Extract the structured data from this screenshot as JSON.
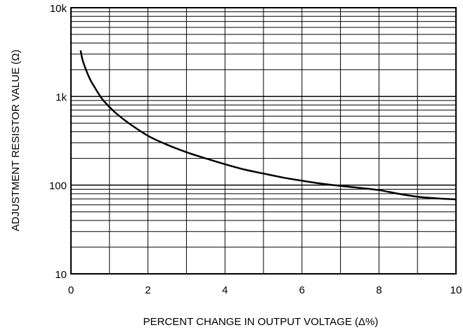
{
  "chart_data": {
    "type": "line",
    "title": "",
    "xlabel": "PERCENT CHANGE IN OUTPUT VOLTAGE (Δ%)",
    "ylabel": "ADJUSTMENT RESISTOR VALUE (Ω)",
    "x_scale": "linear",
    "y_scale": "log",
    "xlim": [
      0,
      10
    ],
    "ylim": [
      10,
      10000
    ],
    "grid": true,
    "x_ticks": [
      0,
      2,
      4,
      6,
      8,
      10
    ],
    "x_tick_labels": [
      "0",
      "2",
      "4",
      "6",
      "8",
      "10"
    ],
    "y_ticks": [
      10,
      100,
      1000,
      10000
    ],
    "y_tick_labels": [
      "10",
      "100",
      "1k",
      "10k"
    ],
    "series": [
      {
        "x": [
          0.25,
          0.3,
          0.4,
          0.5,
          0.6,
          0.8,
          1.0,
          1.2,
          1.5,
          2.0,
          2.5,
          3.0,
          3.5,
          4.0,
          4.5,
          5.0,
          5.5,
          6.0,
          6.5,
          7.0,
          7.5,
          8.0,
          8.5,
          9.0,
          9.5,
          10.0
        ],
        "y": [
          3300,
          2600,
          1950,
          1550,
          1300,
          950,
          760,
          630,
          500,
          360,
          285,
          235,
          200,
          172,
          150,
          135,
          122,
          112,
          104,
          98,
          93,
          88,
          80,
          74,
          71,
          69
        ]
      }
    ],
    "colors": {
      "line": "#000000",
      "grid": "#000000",
      "background": "#ffffff"
    }
  }
}
